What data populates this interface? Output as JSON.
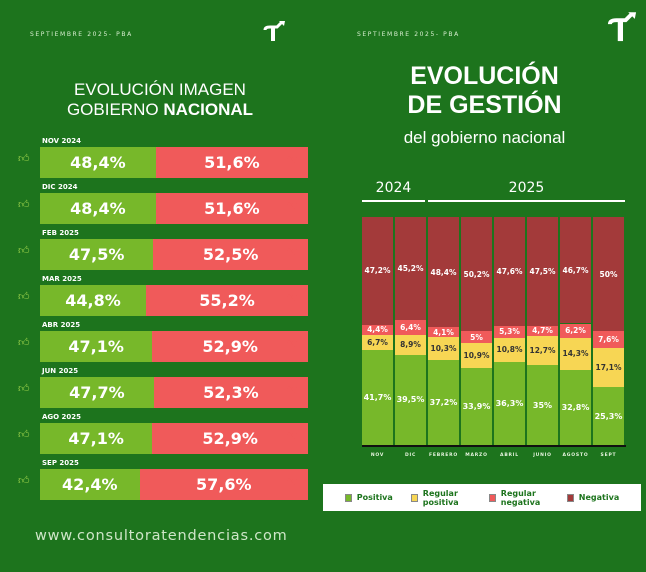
{
  "left": {
    "subtitle": "SEPTIEMBRE 2025- PBA",
    "title_line1": "EVOLUCIÓN IMAGEN",
    "title_line2a": "GOBIERNO ",
    "title_line2b": "NACIONAL",
    "rows": [
      {
        "label": "NOV 2024",
        "positive": "48,4%",
        "negative": "51,6%",
        "pos": 48.4
      },
      {
        "label": "DIC 2024",
        "positive": "48,4%",
        "negative": "51,6%",
        "pos": 48.4
      },
      {
        "label": "FEB 2025",
        "positive": "47,5%",
        "negative": "52,5%",
        "pos": 47.5
      },
      {
        "label": "MAR 2025",
        "positive": "44,8%",
        "negative": "55,2%",
        "pos": 44.8
      },
      {
        "label": "ABR 2025",
        "positive": "47,1%",
        "negative": "52,9%",
        "pos": 47.1
      },
      {
        "label": "JUN 2025",
        "positive": "47,7%",
        "negative": "52,3%",
        "pos": 47.7
      },
      {
        "label": "AGO 2025",
        "positive": "47,1%",
        "negative": "52,9%",
        "pos": 47.1
      },
      {
        "label": "SEP 2025",
        "positive": "42,4%",
        "negative": "57,6%",
        "pos": 42.4
      }
    ],
    "website": "www.consultoratendencias.com"
  },
  "right": {
    "subtitle": "SEPTIEMBRE 2025- PBA",
    "title_line1": "EVOLUCIÓN",
    "title_line2": "DE GESTIÓN",
    "title_line3": "del gobierno nacional",
    "year1": "2024",
    "year2": "2025"
  },
  "colors": {
    "background": "#1d741d",
    "positive": "#77b82a",
    "regular_positive": "#f7d654",
    "regular_negative": "#f05a5a",
    "negative": "#a33a3a"
  },
  "chart_data": {
    "type": "bar",
    "stacked": true,
    "categories": [
      "NOV",
      "DIC",
      "FEBRERO",
      "MARZO",
      "ABRIL",
      "JUNIO",
      "AGOSTO",
      "SEPT"
    ],
    "series": [
      {
        "name": "Positiva",
        "values": [
          41.7,
          39.5,
          37.2,
          33.9,
          36.3,
          35,
          32.8,
          25.3
        ],
        "labels": [
          "41,7%",
          "39,5%",
          "37,2%",
          "33,9%",
          "36,3%",
          "35%",
          "32,8%",
          "25,3%"
        ]
      },
      {
        "name": "Regular positiva",
        "values": [
          6.7,
          8.9,
          10.3,
          10.9,
          10.8,
          12.7,
          14.3,
          17.1
        ],
        "labels": [
          "6,7%",
          "8,9%",
          "10,3%",
          "10,9%",
          "10,8%",
          "12,7%",
          "14,3%",
          "17,1%"
        ]
      },
      {
        "name": "Regular negativa",
        "values": [
          4.4,
          6.4,
          4.1,
          5,
          5.3,
          4.7,
          6.2,
          7.6
        ],
        "labels": [
          "4,4%",
          "6,4%",
          "4,1%",
          "5%",
          "5,3%",
          "4,7%",
          "6,2%",
          "7,6%"
        ]
      },
      {
        "name": "Negativa",
        "values": [
          47.2,
          45.2,
          48.4,
          50.2,
          47.6,
          47.5,
          46.7,
          50
        ],
        "labels": [
          "47,2%",
          "45,2%",
          "48,4%",
          "50,2%",
          "47,6%",
          "47,5%",
          "46,7%",
          "50%"
        ]
      }
    ],
    "ylim": [
      0,
      100
    ],
    "legend": "bottom"
  }
}
